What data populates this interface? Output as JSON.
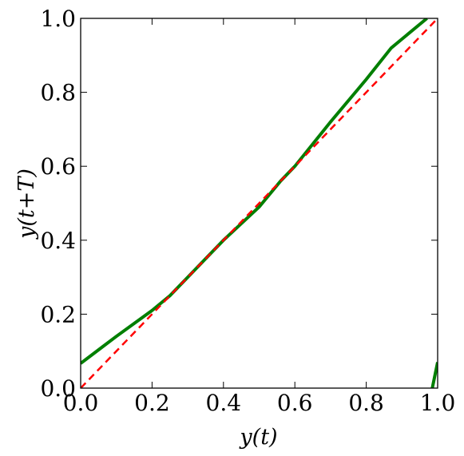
{
  "chart_data": {
    "type": "line",
    "xlabel": "y(t)",
    "ylabel": "y(t+T)",
    "xlim": [
      0,
      1
    ],
    "ylim": [
      0,
      1
    ],
    "xticks": [
      {
        "value": 0,
        "label": "0.0"
      },
      {
        "value": 0.2,
        "label": "0.2"
      },
      {
        "value": 0.4,
        "label": "0.4"
      },
      {
        "value": 0.6,
        "label": "0.6"
      },
      {
        "value": 0.8,
        "label": "0.8"
      },
      {
        "value": 1,
        "label": "1.0"
      }
    ],
    "yticks": [
      {
        "value": 0,
        "label": "0.0"
      },
      {
        "value": 0.2,
        "label": "0.2"
      },
      {
        "value": 0.4,
        "label": "0.4"
      },
      {
        "value": 0.6,
        "label": "0.6"
      },
      {
        "value": 0.8,
        "label": "0.8"
      },
      {
        "value": 1,
        "label": "1.0"
      }
    ],
    "grid": false,
    "series": [
      {
        "color": "#007f00",
        "dash": false,
        "x": [
          0,
          0.1,
          0.2,
          0.25,
          0.3,
          0.4,
          0.5,
          0.56,
          0.6,
          0.7,
          0.8,
          0.87,
          0.97,
          null,
          0.985,
          1.0
        ],
        "values": [
          0.067,
          0.14,
          0.21,
          0.25,
          0.3,
          0.4,
          0.49,
          0.56,
          0.6,
          0.72,
          0.835,
          0.92,
          1.0,
          null,
          0.0,
          0.07
        ]
      },
      {
        "color": "#ff0000",
        "dash": true,
        "x": [
          0,
          1
        ],
        "values": [
          0,
          1
        ]
      }
    ]
  }
}
